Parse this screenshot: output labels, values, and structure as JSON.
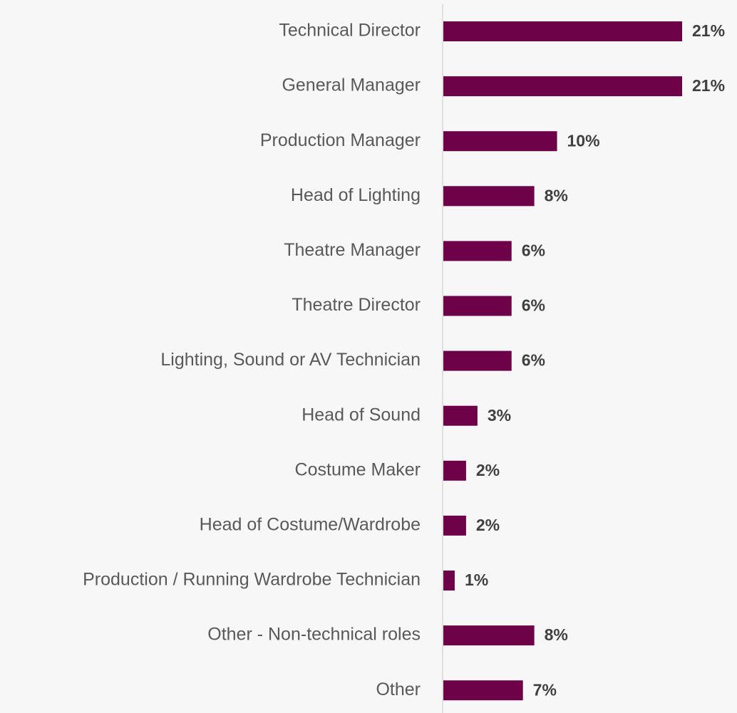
{
  "chart_data": {
    "type": "barh",
    "categories": [
      "Technical Director",
      "General Manager",
      "Production Manager",
      "Head of Lighting",
      "Theatre Manager",
      "Theatre Director",
      "Lighting, Sound or AV Technician",
      "Head of Sound",
      "Costume Maker",
      "Head of Costume/Wardrobe",
      "Production / Running Wardrobe Technician",
      "Other - Non-technical roles",
      "Other"
    ],
    "values": [
      21,
      21,
      10,
      8,
      6,
      6,
      6,
      3,
      2,
      2,
      1,
      8,
      7
    ],
    "value_labels": [
      "21%",
      "21%",
      "10%",
      "8%",
      "6%",
      "6%",
      "6%",
      "3%",
      "2%",
      "2%",
      "1%",
      "8%",
      "7%"
    ],
    "color": "#6e0249"
  }
}
